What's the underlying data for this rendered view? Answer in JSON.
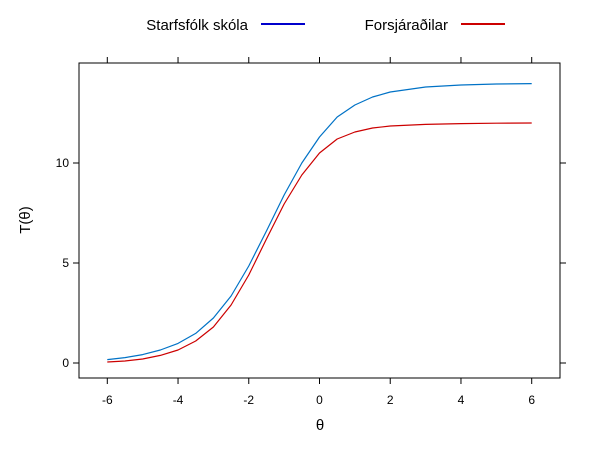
{
  "chart_data": {
    "type": "line",
    "xlabel": "θ",
    "ylabel": "T(θ)",
    "xlim": [
      -6.8,
      6.8
    ],
    "ylim": [
      -0.75,
      15.0
    ],
    "xticks": [
      -6,
      -4,
      -2,
      0,
      2,
      4,
      6
    ],
    "yticks": [
      0,
      5,
      10
    ],
    "grid": false,
    "legend_position": "top",
    "series": [
      {
        "name": "Starfsfólk skóla",
        "color": "#0072C6",
        "legend_color": "#0000CC",
        "x": [
          -6,
          -5.5,
          -5,
          -4.5,
          -4,
          -3.5,
          -3,
          -2.5,
          -2,
          -1.5,
          -1,
          -0.5,
          0,
          0.5,
          1,
          1.5,
          2,
          3,
          4,
          5,
          6
        ],
        "y": [
          0.17,
          0.27,
          0.42,
          0.65,
          0.98,
          1.48,
          2.25,
          3.35,
          4.85,
          6.6,
          8.4,
          10.0,
          11.3,
          12.3,
          12.9,
          13.3,
          13.55,
          13.8,
          13.9,
          13.95,
          13.97
        ]
      },
      {
        "name": "Forsjáraðilar",
        "color": "#CC0000",
        "legend_color": "#CC0000",
        "x": [
          -6,
          -5.5,
          -5,
          -4.5,
          -4,
          -3.5,
          -3,
          -2.5,
          -2,
          -1.5,
          -1,
          -0.5,
          0,
          0.5,
          1,
          1.5,
          2,
          3,
          4,
          5,
          6
        ],
        "y": [
          0.05,
          0.1,
          0.2,
          0.38,
          0.65,
          1.1,
          1.8,
          2.9,
          4.4,
          6.2,
          7.95,
          9.4,
          10.5,
          11.2,
          11.55,
          11.75,
          11.85,
          11.93,
          11.97,
          11.99,
          12.0
        ]
      }
    ]
  }
}
